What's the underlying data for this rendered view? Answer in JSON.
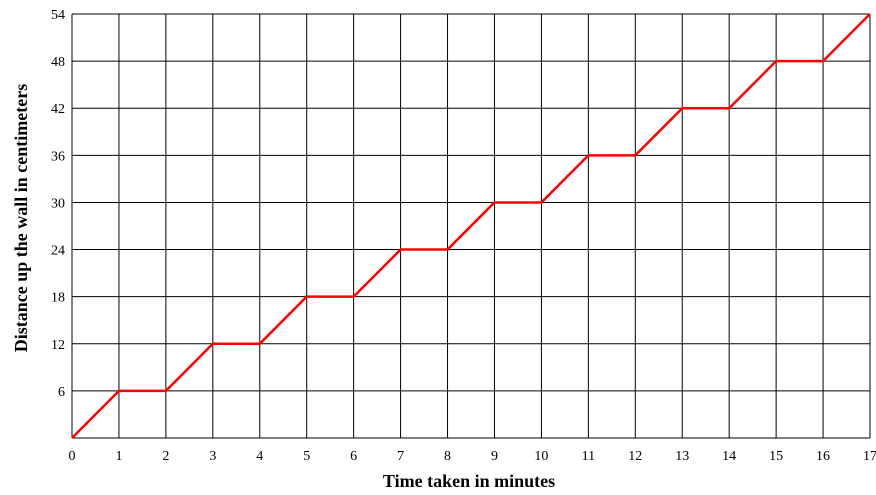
{
  "chart_data": {
    "type": "line",
    "title": "",
    "xlabel": "Time taken in minutes",
    "ylabel": "Distance up the wall in centimeters",
    "xlim": [
      0,
      17
    ],
    "ylim": [
      0,
      54
    ],
    "x_ticks": [
      "0",
      "1",
      "2",
      "3",
      "4",
      "5",
      "6",
      "7",
      "8",
      "9",
      "10",
      "11",
      "12",
      "13",
      "14",
      "15",
      "16",
      "17"
    ],
    "y_ticks": [
      "6",
      "12",
      "18",
      "24",
      "30",
      "36",
      "42",
      "48",
      "54"
    ],
    "grid": true,
    "series": [
      {
        "color": "#ff0000",
        "x": [
          0,
          1,
          2,
          3,
          4,
          5,
          6,
          7,
          8,
          9,
          10,
          11,
          12,
          13,
          14,
          15,
          16,
          17
        ],
        "y": [
          0,
          6,
          6,
          12,
          12,
          18,
          18,
          24,
          24,
          30,
          30,
          36,
          36,
          42,
          42,
          48,
          48,
          54
        ]
      }
    ]
  }
}
